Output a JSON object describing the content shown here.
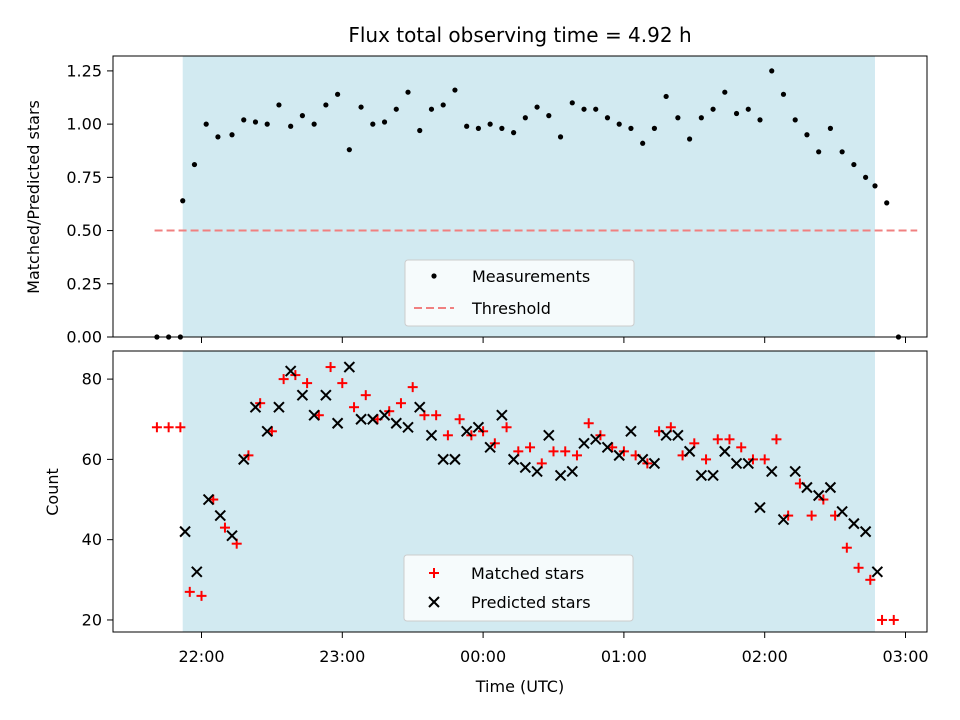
{
  "chart_data": [
    {
      "type": "scatter",
      "title": "Flux total observing time = 4.92 h",
      "xlabel": "",
      "ylabel": "Matched/Predicted stars",
      "ylim": [
        0,
        1.32
      ],
      "yticks": [
        0.0,
        0.25,
        0.5,
        0.75,
        1.0,
        1.25
      ],
      "ytick_labels": [
        "0.00",
        "0.25",
        "0.50",
        "0.75",
        "1.00",
        "1.25"
      ],
      "shaded_window": [
        "21:52",
        "02:47"
      ],
      "legend": [
        "Measurements",
        "Threshold"
      ],
      "legend_position": "lower center",
      "threshold": {
        "value": 0.5,
        "x_range": [
          "21:40",
          "03:05"
        ],
        "color": "#f08080"
      },
      "series": [
        {
          "name": "Measurements",
          "marker": "dot",
          "color": "#000000",
          "points": [
            [
              "21:41",
              0.0
            ],
            [
              "21:46",
              0.0
            ],
            [
              "21:51",
              0.0
            ],
            [
              "21:52",
              0.64
            ],
            [
              "21:57",
              0.81
            ],
            [
              "22:02",
              1.0
            ],
            [
              "22:07",
              0.94
            ],
            [
              "22:13",
              0.95
            ],
            [
              "22:18",
              1.02
            ],
            [
              "22:23",
              1.01
            ],
            [
              "22:28",
              1.0
            ],
            [
              "22:33",
              1.09
            ],
            [
              "22:38",
              0.99
            ],
            [
              "22:43",
              1.04
            ],
            [
              "22:48",
              1.0
            ],
            [
              "22:53",
              1.09
            ],
            [
              "22:58",
              1.14
            ],
            [
              "23:03",
              0.88
            ],
            [
              "23:08",
              1.08
            ],
            [
              "23:13",
              1.0
            ],
            [
              "23:18",
              1.01
            ],
            [
              "23:23",
              1.07
            ],
            [
              "23:28",
              1.15
            ],
            [
              "23:33",
              0.97
            ],
            [
              "23:38",
              1.07
            ],
            [
              "23:43",
              1.09
            ],
            [
              "23:48",
              1.16
            ],
            [
              "23:53",
              0.99
            ],
            [
              "23:58",
              0.98
            ],
            [
              "00:03",
              1.0
            ],
            [
              "00:08",
              0.98
            ],
            [
              "00:13",
              0.96
            ],
            [
              "00:18",
              1.03
            ],
            [
              "00:23",
              1.08
            ],
            [
              "00:28",
              1.04
            ],
            [
              "00:33",
              0.94
            ],
            [
              "00:38",
              1.1
            ],
            [
              "00:43",
              1.07
            ],
            [
              "00:48",
              1.07
            ],
            [
              "00:53",
              1.03
            ],
            [
              "00:58",
              1.0
            ],
            [
              "01:03",
              0.98
            ],
            [
              "01:08",
              0.91
            ],
            [
              "01:13",
              0.98
            ],
            [
              "01:18",
              1.13
            ],
            [
              "01:23",
              1.03
            ],
            [
              "01:28",
              0.93
            ],
            [
              "01:33",
              1.03
            ],
            [
              "01:38",
              1.07
            ],
            [
              "01:43",
              1.15
            ],
            [
              "01:48",
              1.05
            ],
            [
              "01:53",
              1.07
            ],
            [
              "01:58",
              1.02
            ],
            [
              "02:03",
              1.25
            ],
            [
              "02:08",
              1.14
            ],
            [
              "02:13",
              1.02
            ],
            [
              "02:18",
              0.95
            ],
            [
              "02:23",
              0.87
            ],
            [
              "02:28",
              0.98
            ],
            [
              "02:33",
              0.87
            ],
            [
              "02:38",
              0.81
            ],
            [
              "02:43",
              0.75
            ],
            [
              "02:47",
              0.71
            ],
            [
              "02:52",
              0.63
            ],
            [
              "02:57",
              0.0
            ]
          ]
        }
      ]
    },
    {
      "type": "scatter",
      "title": "",
      "xlabel": "Time (UTC)",
      "ylabel": "Count",
      "ylim": [
        17,
        87
      ],
      "yticks": [
        20,
        40,
        60,
        80
      ],
      "ytick_labels": [
        "20",
        "40",
        "60",
        "80"
      ],
      "xticks": [
        "22:00",
        "23:00",
        "00:00",
        "01:00",
        "02:00",
        "03:00"
      ],
      "shaded_window": [
        "21:52",
        "02:47"
      ],
      "legend": [
        "Matched stars",
        "Predicted stars"
      ],
      "legend_position": "lower center",
      "series": [
        {
          "name": "Matched stars",
          "marker": "plus",
          "color": "#ff0000",
          "points": [
            [
              "21:41",
              68
            ],
            [
              "21:46",
              68
            ],
            [
              "21:51",
              68
            ],
            [
              "21:55",
              27
            ],
            [
              "22:00",
              26
            ],
            [
              "22:05",
              50
            ],
            [
              "22:10",
              43
            ],
            [
              "22:15",
              39
            ],
            [
              "22:20",
              61
            ],
            [
              "22:25",
              74
            ],
            [
              "22:30",
              67
            ],
            [
              "22:35",
              80
            ],
            [
              "22:40",
              81
            ],
            [
              "22:45",
              79
            ],
            [
              "22:50",
              71
            ],
            [
              "22:55",
              83
            ],
            [
              "23:00",
              79
            ],
            [
              "23:05",
              73
            ],
            [
              "23:10",
              76
            ],
            [
              "23:15",
              70
            ],
            [
              "23:20",
              72
            ],
            [
              "23:25",
              74
            ],
            [
              "23:30",
              78
            ],
            [
              "23:35",
              71
            ],
            [
              "23:40",
              71
            ],
            [
              "23:45",
              66
            ],
            [
              "23:50",
              70
            ],
            [
              "23:55",
              66
            ],
            [
              "00:00",
              67
            ],
            [
              "00:05",
              64
            ],
            [
              "00:10",
              68
            ],
            [
              "00:15",
              62
            ],
            [
              "00:20",
              63
            ],
            [
              "00:25",
              59
            ],
            [
              "00:30",
              62
            ],
            [
              "00:35",
              62
            ],
            [
              "00:40",
              61
            ],
            [
              "00:45",
              69
            ],
            [
              "00:50",
              66
            ],
            [
              "00:55",
              63
            ],
            [
              "01:00",
              62
            ],
            [
              "01:05",
              61
            ],
            [
              "01:10",
              59
            ],
            [
              "01:15",
              67
            ],
            [
              "01:20",
              68
            ],
            [
              "01:25",
              61
            ],
            [
              "01:30",
              64
            ],
            [
              "01:35",
              60
            ],
            [
              "01:40",
              65
            ],
            [
              "01:45",
              65
            ],
            [
              "01:50",
              63
            ],
            [
              "01:55",
              60
            ],
            [
              "02:00",
              60
            ],
            [
              "02:05",
              65
            ],
            [
              "02:10",
              46
            ],
            [
              "02:15",
              54
            ],
            [
              "02:20",
              46
            ],
            [
              "02:25",
              50
            ],
            [
              "02:30",
              46
            ],
            [
              "02:35",
              38
            ],
            [
              "02:40",
              33
            ],
            [
              "02:45",
              30
            ],
            [
              "02:50",
              20
            ],
            [
              "02:55",
              20
            ]
          ]
        },
        {
          "name": "Predicted stars",
          "marker": "x",
          "color": "#000000",
          "points": [
            [
              "21:53",
              42
            ],
            [
              "21:58",
              32
            ],
            [
              "22:03",
              50
            ],
            [
              "22:08",
              46
            ],
            [
              "22:13",
              41
            ],
            [
              "22:18",
              60
            ],
            [
              "22:23",
              73
            ],
            [
              "22:28",
              67
            ],
            [
              "22:33",
              73
            ],
            [
              "22:38",
              82
            ],
            [
              "22:43",
              76
            ],
            [
              "22:48",
              71
            ],
            [
              "22:53",
              76
            ],
            [
              "22:58",
              69
            ],
            [
              "23:03",
              83
            ],
            [
              "23:08",
              70
            ],
            [
              "23:13",
              70
            ],
            [
              "23:18",
              71
            ],
            [
              "23:23",
              69
            ],
            [
              "23:28",
              68
            ],
            [
              "23:33",
              73
            ],
            [
              "23:38",
              66
            ],
            [
              "23:43",
              60
            ],
            [
              "23:48",
              60
            ],
            [
              "23:53",
              67
            ],
            [
              "23:58",
              68
            ],
            [
              "00:03",
              63
            ],
            [
              "00:08",
              71
            ],
            [
              "00:13",
              60
            ],
            [
              "00:18",
              58
            ],
            [
              "00:23",
              57
            ],
            [
              "00:28",
              66
            ],
            [
              "00:33",
              56
            ],
            [
              "00:38",
              57
            ],
            [
              "00:43",
              64
            ],
            [
              "00:48",
              65
            ],
            [
              "00:53",
              63
            ],
            [
              "00:58",
              61
            ],
            [
              "01:03",
              67
            ],
            [
              "01:08",
              60
            ],
            [
              "01:13",
              59
            ],
            [
              "01:18",
              66
            ],
            [
              "01:23",
              66
            ],
            [
              "01:28",
              62
            ],
            [
              "01:33",
              56
            ],
            [
              "01:38",
              56
            ],
            [
              "01:43",
              62
            ],
            [
              "01:48",
              59
            ],
            [
              "01:53",
              59
            ],
            [
              "01:58",
              48
            ],
            [
              "02:03",
              57
            ],
            [
              "02:08",
              45
            ],
            [
              "02:13",
              57
            ],
            [
              "02:18",
              53
            ],
            [
              "02:23",
              51
            ],
            [
              "02:28",
              53
            ],
            [
              "02:33",
              47
            ],
            [
              "02:38",
              44
            ],
            [
              "02:43",
              42
            ],
            [
              "02:48",
              32
            ]
          ]
        }
      ]
    }
  ]
}
